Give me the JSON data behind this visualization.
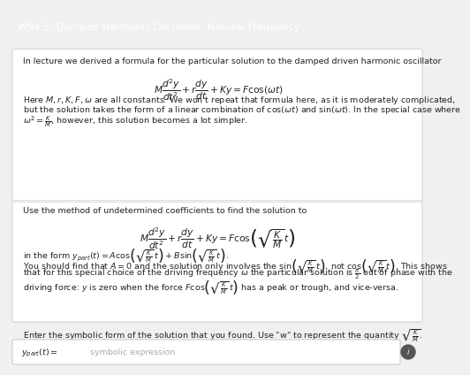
{
  "title": "WS4.5. Damped Harmonic Oscillator: Natural Frequency",
  "title_bg": "#2b7fe3",
  "title_fg": "#FFFFFF",
  "bg_color": "#F0F0F0",
  "panel_bg": "#FFFFFF",
  "text_color": "#222222",
  "para1": "In lecture we derived a formula for the particular solution to the damped driven harmonic oscillator",
  "eq1": "$M\\dfrac{d^2y}{dt^2} + r\\dfrac{dy}{dt} + Ky = F\\cos(\\omega t)$",
  "para2a": "Here $M, r, K, F, \\omega$ are all constants. We won't repeat that formula here, as it is moderately complicated,",
  "para2b": "but the solution takes the form of a linear combination of $\\cos(\\omega t)$ and $\\sin(\\omega t)$. In the special case where",
  "para2c": "$\\omega^2 = \\frac{K}{M}$, however, this solution becomes a lot simpler.",
  "para3": "Use the method of undetermined coefficients to find the solution to",
  "eq2": "$M\\dfrac{d^2y}{dt^2} + r\\dfrac{dy}{dt} + Ky = F\\cos\\!\\left(\\sqrt{\\dfrac{K}{M}}\\,t\\right)$",
  "para4a": "in the form $y_{part}(t) = A\\cos\\!\\left(\\sqrt{\\frac{K}{M}}\\,t\\right) + B\\sin\\!\\left(\\sqrt{\\frac{K}{M}}\\,t\\right)$.",
  "para4b": "You should find that $A = 0$ and the solution only involves the $\\sin\\!\\left(\\sqrt{\\frac{K}{M}}\\,t\\right)$, not $\\cos\\!\\left(\\sqrt{\\frac{K}{M}}\\,t\\right)$. This shows",
  "para4c": "that for this special choice of the driving frequency $\\omega$ the particular solution is $\\frac{\\pi}{2}$ out of phase with the",
  "para4d": "driving force: $y$ is zero when the force $F\\cos\\!\\left(\\sqrt{\\frac{K}{M}}\\,t\\right)$ has a peak or trough, and vice-versa.",
  "para5": "Enter the symbolic form of the solution that you found. Use \"w\" to represent the quantity $\\sqrt{\\frac{K}{M}}$.",
  "input_label": "$y_{part}(t) =$",
  "input_placeholder": "symbolic expression",
  "divider_color": "#DDDDDD",
  "border_color": "#CCCCCC"
}
